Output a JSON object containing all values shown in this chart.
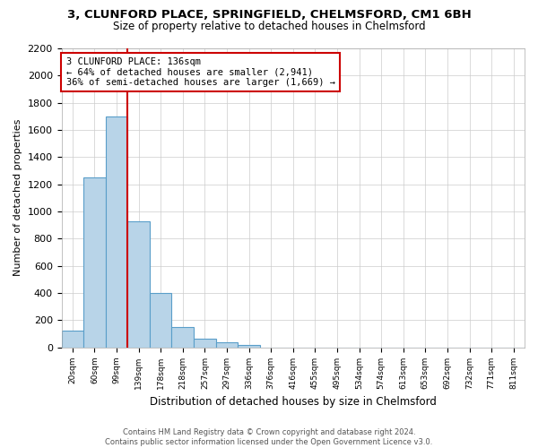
{
  "title1": "3, CLUNFORD PLACE, SPRINGFIELD, CHELMSFORD, CM1 6BH",
  "title2": "Size of property relative to detached houses in Chelmsford",
  "xlabel": "Distribution of detached houses by size in Chelmsford",
  "ylabel": "Number of detached properties",
  "bin_labels": [
    "20sqm",
    "60sqm",
    "99sqm",
    "139sqm",
    "178sqm",
    "218sqm",
    "257sqm",
    "297sqm",
    "336sqm",
    "376sqm",
    "416sqm",
    "455sqm",
    "495sqm",
    "534sqm",
    "574sqm",
    "613sqm",
    "653sqm",
    "692sqm",
    "732sqm",
    "771sqm",
    "811sqm"
  ],
  "bar_values": [
    120,
    1250,
    1700,
    930,
    400,
    150,
    65,
    35,
    20,
    0,
    0,
    0,
    0,
    0,
    0,
    0,
    0,
    0,
    0,
    0,
    0
  ],
  "bar_color": "#b8d4e8",
  "bar_edge_color": "#5a9ec9",
  "vline_color": "#cc0000",
  "vline_position": 2.5,
  "ylim": [
    0,
    2200
  ],
  "yticks": [
    0,
    200,
    400,
    600,
    800,
    1000,
    1200,
    1400,
    1600,
    1800,
    2000,
    2200
  ],
  "annotation_title": "3 CLUNFORD PLACE: 136sqm",
  "annotation_line1": "← 64% of detached houses are smaller (2,941)",
  "annotation_line2": "36% of semi-detached houses are larger (1,669) →",
  "annotation_box_edge_color": "#cc0000",
  "footer1": "Contains HM Land Registry data © Crown copyright and database right 2024.",
  "footer2": "Contains public sector information licensed under the Open Government Licence v3.0.",
  "background_color": "#ffffff",
  "grid_color": "#cccccc"
}
